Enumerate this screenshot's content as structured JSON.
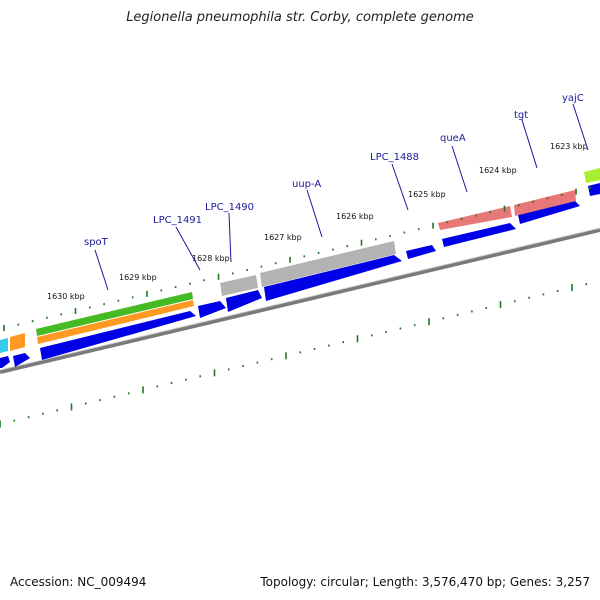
{
  "title": "Legionella pneumophila str. Corby, complete genome",
  "accession": "Accession: NC_009494",
  "summary": "Topology: circular; Length: 3,576,470 bp; Genes: 3,257",
  "colors": {
    "cds": "#0000e6",
    "grey": "#b3b3b3",
    "red": "#e87777",
    "green": "#44bb22",
    "orange": "#ff9922",
    "cyan": "#33ccee",
    "lime": "#aaee33",
    "backbone": "#7a7a7a",
    "tick": "#227722",
    "label_line": "#1a1a9a"
  },
  "scale_labels": [
    "1630 kbp",
    "1629 kbp",
    "1628 kbp",
    "1627 kbp",
    "1626 kbp",
    "1625 kbp",
    "1624 kbp",
    "1623 kbp"
  ],
  "gene_labels": [
    "spoT",
    "LPC_1491",
    "LPC_1490",
    "uup-A",
    "LPC_1488",
    "queA",
    "tgt",
    "yajC"
  ]
}
